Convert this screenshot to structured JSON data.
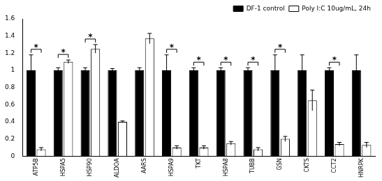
{
  "chart_data": {
    "type": "bar",
    "categories": [
      "ATP5B",
      "HSPA5",
      "HSP90",
      "ALDOA",
      "AARS",
      "HSPA9",
      "TKT",
      "HSPA8",
      "TUBB",
      "GSN",
      "CKTS",
      "CCT2",
      "HNRPK"
    ],
    "series": [
      {
        "name": "DF-1 control",
        "color": "#000000",
        "values": [
          1,
          1,
          1,
          1,
          1,
          1,
          1,
          1,
          1,
          1,
          1,
          1,
          1
        ],
        "errors": [
          0.18,
          0.03,
          0.03,
          0.02,
          0.03,
          0.18,
          0.03,
          0.03,
          0.03,
          0.18,
          0.18,
          0.03,
          0.18
        ]
      },
      {
        "name": "Poly I:C 10ug/mL, 24h",
        "color": "#ffffff",
        "values": [
          0.08,
          1.1,
          1.25,
          0.4,
          1.37,
          0.1,
          0.1,
          0.15,
          0.08,
          0.2,
          0.65,
          0.14,
          0.13
        ],
        "errors": [
          0.02,
          0.02,
          0.05,
          0.01,
          0.06,
          0.02,
          0.02,
          0.02,
          0.02,
          0.03,
          0.12,
          0.02,
          0.03
        ]
      }
    ],
    "annotations": [
      {
        "text": "*",
        "category": "ATP5B"
      },
      {
        "text": "*",
        "category": "HSPA5"
      },
      {
        "text": "*",
        "category": "HSP90"
      },
      {
        "text": "*",
        "category": "HSPA9"
      },
      {
        "text": "*",
        "category": "TKT"
      },
      {
        "text": "*",
        "category": "HSPA8"
      },
      {
        "text": "*",
        "category": "TUBB"
      },
      {
        "text": "*",
        "category": "GSN"
      },
      {
        "text": "*",
        "category": "CCT2"
      }
    ],
    "ylim": [
      0,
      1.6
    ],
    "yticks": [
      0,
      0.2,
      0.4,
      0.6,
      0.8,
      1,
      1.2,
      1.4,
      1.6
    ],
    "grid": false,
    "legend": "upper right"
  }
}
